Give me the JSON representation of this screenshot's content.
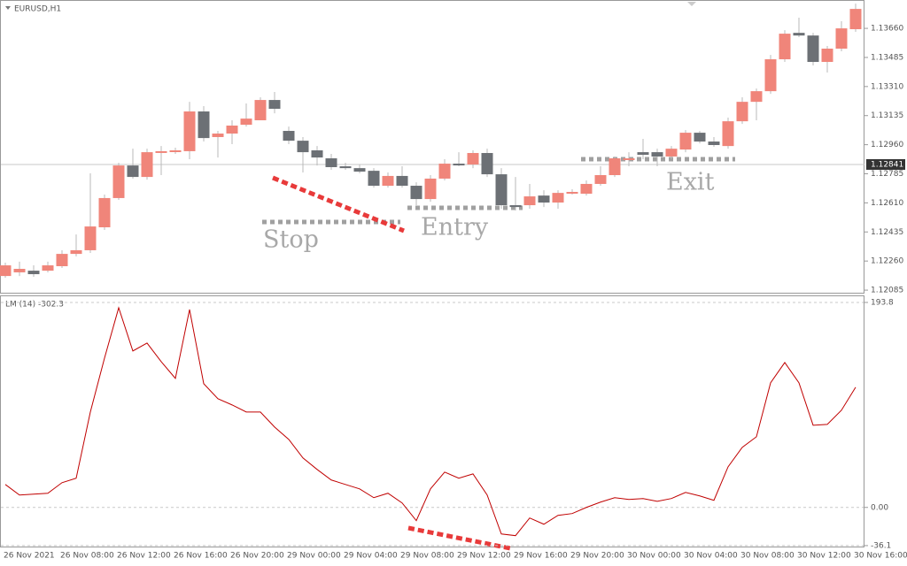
{
  "chart_data": [
    {
      "type": "candlestick",
      "title": "EURUSD,H1",
      "categories": [
        "26 Nov 2021",
        null,
        null,
        null,
        "26 Nov 08:00",
        null,
        null,
        null,
        "26 Nov 12:00",
        null,
        null,
        null,
        "26 Nov 16:00",
        null,
        null,
        null,
        "26 Nov 20:00",
        null,
        null,
        null,
        "29 Nov 00:00",
        null,
        null,
        null,
        "29 Nov 04:00",
        null,
        null,
        null,
        "29 Nov 08:00",
        null,
        null,
        null,
        "29 Nov 12:00",
        null,
        null,
        null,
        "29 Nov 16:00",
        null,
        null,
        null,
        "29 Nov 20:00",
        null,
        null,
        null,
        "30 Nov 00:00",
        null,
        null,
        null,
        "30 Nov 04:00",
        null,
        null,
        null,
        "30 Nov 08:00",
        null,
        null,
        null,
        "30 Nov 12:00",
        null,
        null,
        null,
        "30 Nov 16:00"
      ],
      "open": [
        1.1217,
        1.12192,
        1.12202,
        1.12202,
        1.12229,
        1.12303,
        1.12325,
        1.12463,
        1.12639,
        1.12835,
        1.12766,
        1.12915,
        1.12921,
        1.12921,
        1.1316,
        1.13006,
        1.13027,
        1.1308,
        1.13107,
        1.13229,
        1.13043,
        1.12984,
        1.12926,
        1.12878,
        1.1283,
        1.12819,
        1.12803,
        1.12713,
        1.12772,
        1.12713,
        1.12633,
        1.12756,
        1.12846,
        1.12841,
        1.1291,
        1.12782,
        1.12596,
        1.12596,
        1.12654,
        1.12612,
        1.1267,
        1.12665,
        1.12724,
        1.12777,
        1.12873,
        1.12915,
        1.12915,
        1.12889,
        1.12931,
        1.13032,
        1.12979,
        1.12952,
        1.13101,
        1.13218,
        1.13282,
        1.13474,
        1.13633,
        1.13617,
        1.13458,
        1.13538,
        1.13655
      ],
      "high": [
        1.1225,
        1.12256,
        1.12234,
        1.12256,
        1.12325,
        1.1242,
        1.12788,
        1.1266,
        1.12851,
        1.12936,
        1.12936,
        1.12952,
        1.12942,
        1.13218,
        1.13192,
        1.13043,
        1.13107,
        1.13208,
        1.13245,
        1.13277,
        1.13069,
        1.13006,
        1.12952,
        1.12905,
        1.12851,
        1.12841,
        1.12819,
        1.12793,
        1.1283,
        1.12734,
        1.12777,
        1.12873,
        1.12915,
        1.12926,
        1.12936,
        1.12819,
        1.12766,
        1.12724,
        1.12686,
        1.12686,
        1.12692,
        1.12745,
        1.1283,
        1.12889,
        1.12915,
        1.12995,
        1.12936,
        1.12952,
        1.13048,
        1.13043,
        1.13006,
        1.13123,
        1.13245,
        1.13298,
        1.135,
        1.13649,
        1.13724,
        1.13633,
        1.13554,
        1.13703,
        1.13809
      ],
      "low": [
        1.1216,
        1.1217,
        1.12165,
        1.12192,
        1.12218,
        1.12288,
        1.12309,
        1.12447,
        1.12628,
        1.12756,
        1.1275,
        1.12777,
        1.12905,
        1.12873,
        1.12979,
        1.12883,
        1.12963,
        1.13069,
        1.13107,
        1.13149,
        1.12963,
        1.12793,
        1.12835,
        1.12809,
        1.12809,
        1.12788,
        1.12702,
        1.12702,
        1.12702,
        1.12596,
        1.12617,
        1.12745,
        1.1283,
        1.12819,
        1.12766,
        1.12575,
        1.12564,
        1.12575,
        1.12585,
        1.12575,
        1.1266,
        1.12654,
        1.12713,
        1.12766,
        1.1283,
        1.12873,
        1.1283,
        1.12873,
        1.12915,
        1.12968,
        1.12947,
        1.12936,
        1.13085,
        1.13107,
        1.13266,
        1.13458,
        1.13607,
        1.13437,
        1.13394,
        1.13522,
        1.13639
      ],
      "close": [
        1.12234,
        1.12213,
        1.12181,
        1.12234,
        1.12303,
        1.12325,
        1.12468,
        1.12639,
        1.12835,
        1.12766,
        1.12915,
        1.12921,
        1.12926,
        1.1316,
        1.13,
        1.13027,
        1.13075,
        1.13117,
        1.13229,
        1.13176,
        1.12984,
        1.12915,
        1.12883,
        1.12825,
        1.12819,
        1.12798,
        1.12713,
        1.12772,
        1.12713,
        1.12633,
        1.12756,
        1.12846,
        1.12841,
        1.1291,
        1.12782,
        1.12596,
        1.12585,
        1.12649,
        1.12612,
        1.1267,
        1.12676,
        1.12724,
        1.12777,
        1.12878,
        1.12878,
        1.12899,
        1.12889,
        1.12936,
        1.13032,
        1.12979,
        1.12958,
        1.13101,
        1.13218,
        1.13282,
        1.13474,
        1.13628,
        1.13617,
        1.13458,
        1.13538,
        1.1366,
        1.13777
      ],
      "up_color": "#f0857a",
      "down_color": "#6c7075",
      "ylim": [
        1.12064,
        1.1382
      ],
      "yticks": [
        {
          "value": 1.1366,
          "label": "1.13660"
        },
        1.13485,
        {
          "value": 1.1331,
          "label": "1.13310"
        },
        1.13135,
        {
          "value": 1.1296,
          "label": "1.12960"
        },
        1.12785,
        {
          "value": 1.1261,
          "label": "1.12610"
        },
        1.12435,
        {
          "value": 1.1226,
          "label": "1.12260"
        },
        1.12085
      ],
      "current_price": 1.12841,
      "annotations": [
        "Stop",
        "Entry",
        "Exit"
      ]
    },
    {
      "type": "line",
      "title": "LM (14) -302.3",
      "color": "#c00000",
      "values": [
        21.7,
        11.7,
        12.5,
        13.4,
        23.4,
        27.6,
        90.2,
        141.2,
        188.8,
        147.9,
        155.4,
        137.8,
        122.0,
        187.1,
        117.0,
        102.8,
        96.9,
        90.2,
        90.2,
        76.0,
        64.3,
        46.8,
        35.9,
        25.9,
        21.7,
        17.5,
        9.2,
        13.4,
        4.2,
        -12.5,
        17.5,
        33.4,
        27.6,
        31.7,
        11.7,
        -25.1,
        -26.7,
        -10.0,
        -15.9,
        -7.5,
        -5.8,
        0.0,
        5.0,
        9.2,
        7.5,
        8.4,
        5.8,
        8.4,
        14.2,
        10.9,
        6.7,
        38.4,
        56.8,
        66.8,
        117.8,
        137.0,
        117.8,
        77.7,
        78.5,
        91.9,
        113.6
      ],
      "ylim": [
        -37,
        198.8
      ],
      "yticks": [
        193.8,
        {
          "value": 0,
          "label": "0.00"
        },
        -36.1
      ],
      "grid": true
    }
  ]
}
